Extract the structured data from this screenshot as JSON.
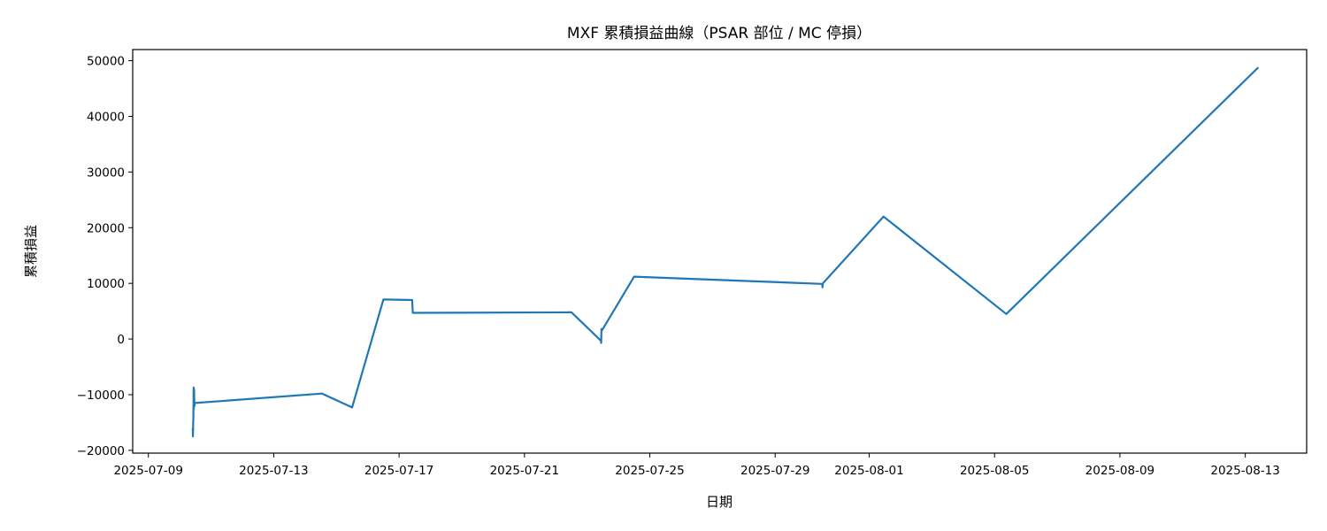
{
  "chart_data": {
    "type": "line",
    "title": "MXF 累積損益曲線（PSAR 部位 / MC 停損）",
    "xlabel": "日期",
    "ylabel": "累積損益",
    "ylim": [
      -20500,
      52000
    ],
    "xlim": [
      "2025-07-08T12:00",
      "2025-08-14T23:00"
    ],
    "grid": false,
    "legend": "none",
    "color": "#1f77b4",
    "x_ticks": [
      "2025-07-09",
      "2025-07-13",
      "2025-07-17",
      "2025-07-21",
      "2025-07-25",
      "2025-07-29",
      "2025-08-01",
      "2025-08-05",
      "2025-08-09",
      "2025-08-13"
    ],
    "y_ticks": [
      -20000,
      -10000,
      0,
      10000,
      20000,
      30000,
      40000,
      50000
    ],
    "y_tick_labels": [
      "−20000",
      "−10000",
      "0",
      "10000",
      "20000",
      "30000",
      "40000",
      "50000"
    ],
    "series": [
      {
        "x": [
          "2025-07-10T10:00",
          "2025-07-10T10:10",
          "2025-07-10T10:20",
          "2025-07-10T10:30",
          "2025-07-10T10:40",
          "2025-07-10T10:50",
          "2025-07-10T11:00",
          "2025-07-10T11:10",
          "2025-07-10T11:20",
          "2025-07-10T11:30",
          "2025-07-14T13:00",
          "2025-07-15T12:00",
          "2025-07-16T12:00",
          "2025-07-17T10:00",
          "2025-07-17T10:30",
          "2025-07-22T12:00",
          "2025-07-23T10:30",
          "2025-07-23T10:45",
          "2025-07-23T11:00",
          "2025-07-23T11:15",
          "2025-07-24T12:00",
          "2025-07-30T12:00",
          "2025-07-30T12:15",
          "2025-07-30T12:30",
          "2025-08-01T11:00",
          "2025-08-05T09:00",
          "2025-08-13T10:00"
        ],
        "values": [
          -16000,
          -17500,
          -15000,
          -14000,
          -8700,
          -12500,
          -9000,
          -11000,
          -12000,
          -11500,
          -9800,
          -12300,
          7100,
          7000,
          4700,
          4800,
          -300,
          -700,
          1800,
          1500,
          11200,
          9900,
          9300,
          10000,
          22000,
          4500,
          48800
        ]
      }
    ]
  }
}
